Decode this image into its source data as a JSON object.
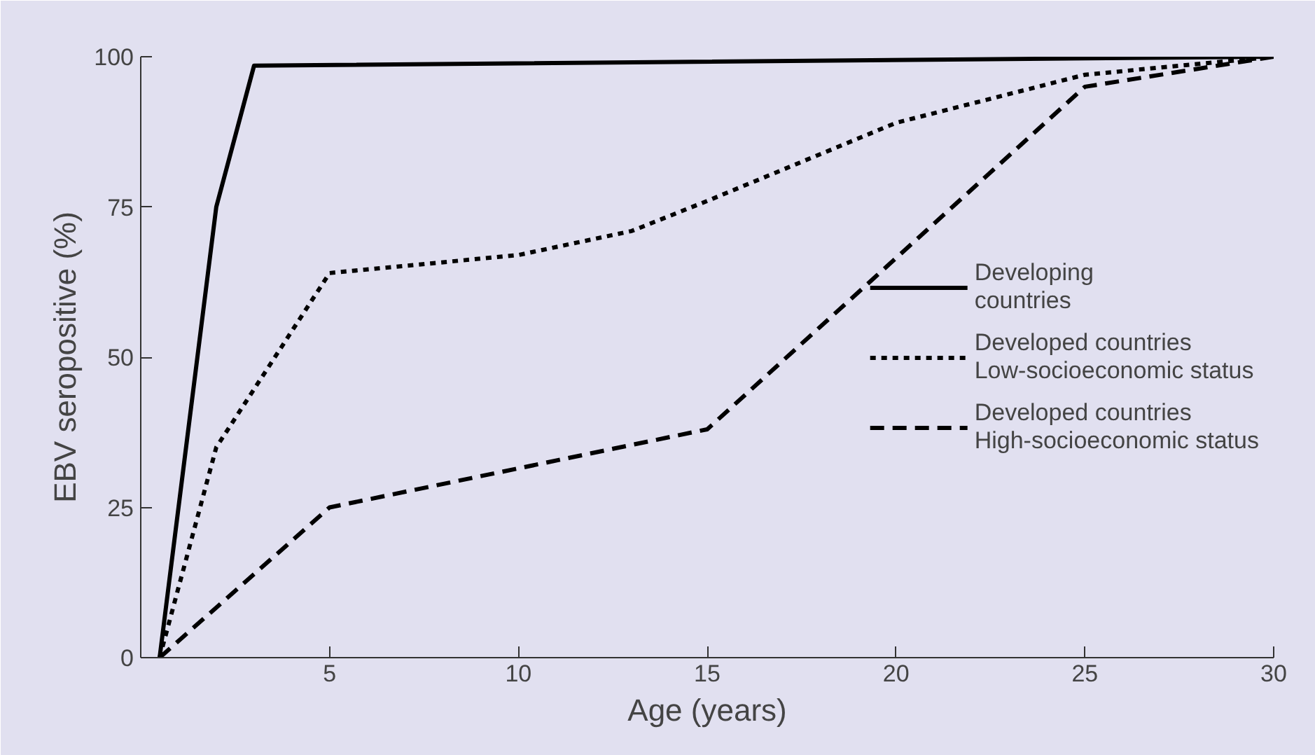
{
  "chart_data": {
    "type": "line",
    "xlabel": "Age (years)",
    "ylabel": "EBV seropositive (%)",
    "xlim": [
      0,
      30
    ],
    "ylim": [
      0,
      100
    ],
    "xticks": [
      5,
      10,
      15,
      20,
      25,
      30
    ],
    "yticks": [
      0,
      25,
      50,
      75,
      100
    ],
    "grid": false,
    "legend": "right",
    "marker": "none",
    "series": [
      {
        "name": "Developing\ncountries",
        "color": "#000000",
        "line_style": "solid",
        "x": [
          0.5,
          2,
          3,
          30
        ],
        "values": [
          0,
          75,
          98.5,
          100
        ]
      },
      {
        "name": "Developed countries\nLow-socioeconomic status",
        "color": "#000000",
        "line_style": "dotted",
        "x": [
          0.5,
          2,
          5,
          10,
          13,
          15,
          20,
          25,
          30
        ],
        "values": [
          0,
          35,
          64,
          67,
          71,
          76,
          89,
          97,
          100
        ]
      },
      {
        "name": "Developed countries\nHigh-socioeconomic status",
        "color": "#000000",
        "line_style": "dashed",
        "x": [
          0.5,
          5,
          15,
          25,
          30
        ],
        "values": [
          0,
          25,
          38,
          95,
          100
        ]
      }
    ]
  }
}
